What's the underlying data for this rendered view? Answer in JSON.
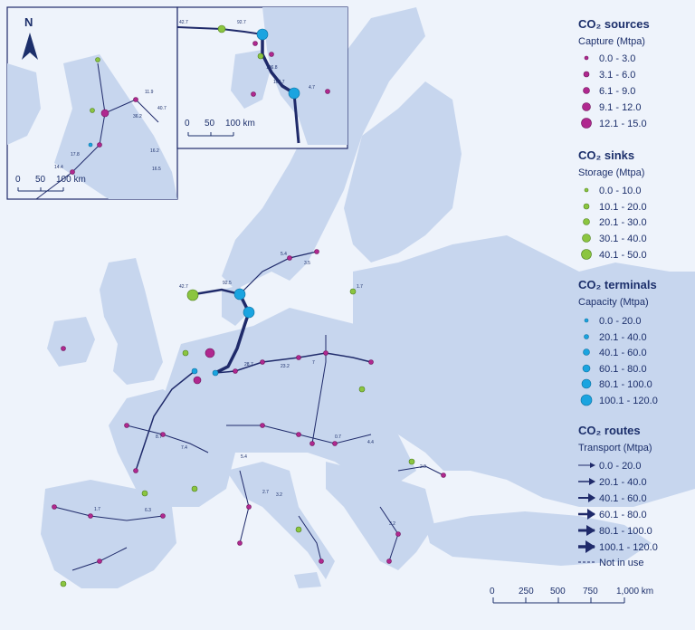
{
  "compass": {
    "label": "N",
    "icon": "north-arrow-icon"
  },
  "colors": {
    "land": "#c7d6ee",
    "sea": "#eef3fb",
    "source": "#b0288f",
    "sink": "#8bc540",
    "terminal": "#1aa4e0",
    "route": "#1f2a6a"
  },
  "legend": {
    "sources": {
      "title": "CO₂ sources",
      "subtitle": "Capture (Mtpa)",
      "items": [
        "0.0 - 3.0",
        "3.1 - 6.0",
        "6.1 - 9.0",
        "9.1 - 12.0",
        "12.1 - 15.0"
      ]
    },
    "sinks": {
      "title": "CO₂ sinks",
      "subtitle": "Storage (Mtpa)",
      "items": [
        "0.0 - 10.0",
        "10.1 - 20.0",
        "20.1 - 30.0",
        "30.1 - 40.0",
        "40.1 - 50.0"
      ]
    },
    "terminals": {
      "title": "CO₂ terminals",
      "subtitle": "Capacity (Mtpa)",
      "items": [
        "0.0 - 20.0",
        "20.1 - 40.0",
        "40.1 - 60.0",
        "60.1 - 80.0",
        "80.1 - 100.0",
        "100.1 - 120.0"
      ]
    },
    "routes": {
      "title": "CO₂ routes",
      "subtitle": "Transport (Mtpa)",
      "items": [
        "0.0 - 20.0",
        "20.1 - 40.0",
        "40.1 - 60.0",
        "60.1 - 80.0",
        "80.1 - 100.0",
        "100.1 - 120.0"
      ],
      "unused": "Not in use"
    }
  },
  "scales": {
    "inset1": [
      "0",
      "50",
      "100 km"
    ],
    "inset2": [
      "0",
      "50",
      "100 km"
    ],
    "main": [
      "0",
      "250",
      "500",
      "750",
      "1,000 km"
    ]
  },
  "inset_labels": {
    "inset1": [
      "11.9",
      "36.2",
      "40.7",
      "17.8",
      "14.4",
      "16.2",
      "16.5"
    ],
    "inset2": [
      "42.7",
      "92.7",
      "106.8",
      "104.7",
      "4.7"
    ]
  },
  "main_labels": [
    "42.7",
    "92.5",
    "5.4",
    "3.5",
    "28.7",
    "7",
    "1.7",
    "23.2",
    "8.7",
    "7.4",
    "5.4",
    "2.7",
    "3.2",
    "6.3",
    "1.7",
    "2.9",
    "4.4",
    "0.7",
    "3.2"
  ]
}
